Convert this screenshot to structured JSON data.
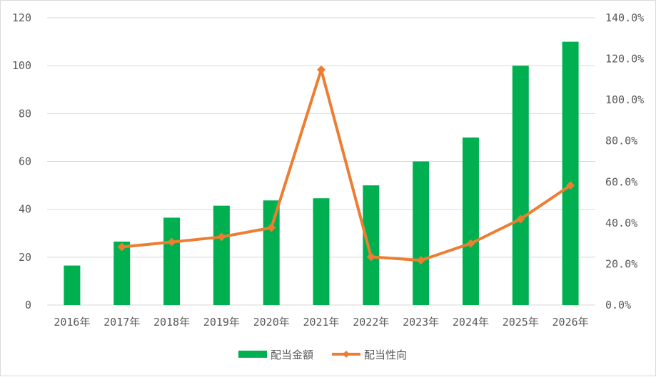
{
  "chart_data": {
    "type": "bar+line",
    "categories": [
      "2016年",
      "2017年",
      "2018年",
      "2019年",
      "2020年",
      "2021年",
      "2022年",
      "2023年",
      "2024年",
      "2025年",
      "2026年"
    ],
    "series": [
      {
        "name": "配当金額",
        "type": "bar",
        "axis": "left",
        "color": "#00b050",
        "values": [
          16.5,
          26.5,
          36.5,
          41.5,
          43.7,
          44.6,
          50,
          60,
          70,
          100,
          110
        ]
      },
      {
        "name": "配当性向",
        "type": "line",
        "axis": "right",
        "color": "#ed7d31",
        "marker": "diamond",
        "values": [
          null,
          28.3,
          30.7,
          33.2,
          37.7,
          114.7,
          23.5,
          21.8,
          30.0,
          41.9,
          58.3
        ]
      }
    ],
    "y_left": {
      "range": [
        0,
        120
      ],
      "ticks": [
        "0",
        "20",
        "40",
        "60",
        "80",
        "100",
        "120"
      ]
    },
    "y_right": {
      "range": [
        0,
        140
      ],
      "ticks": [
        "0.0%",
        "20.0%",
        "40.0%",
        "60.0%",
        "80.0%",
        "100.0%",
        "120.0%",
        "140.0%"
      ]
    },
    "grid": true,
    "gridline_color": "#d9d9d9",
    "legend_position": "bottom"
  }
}
